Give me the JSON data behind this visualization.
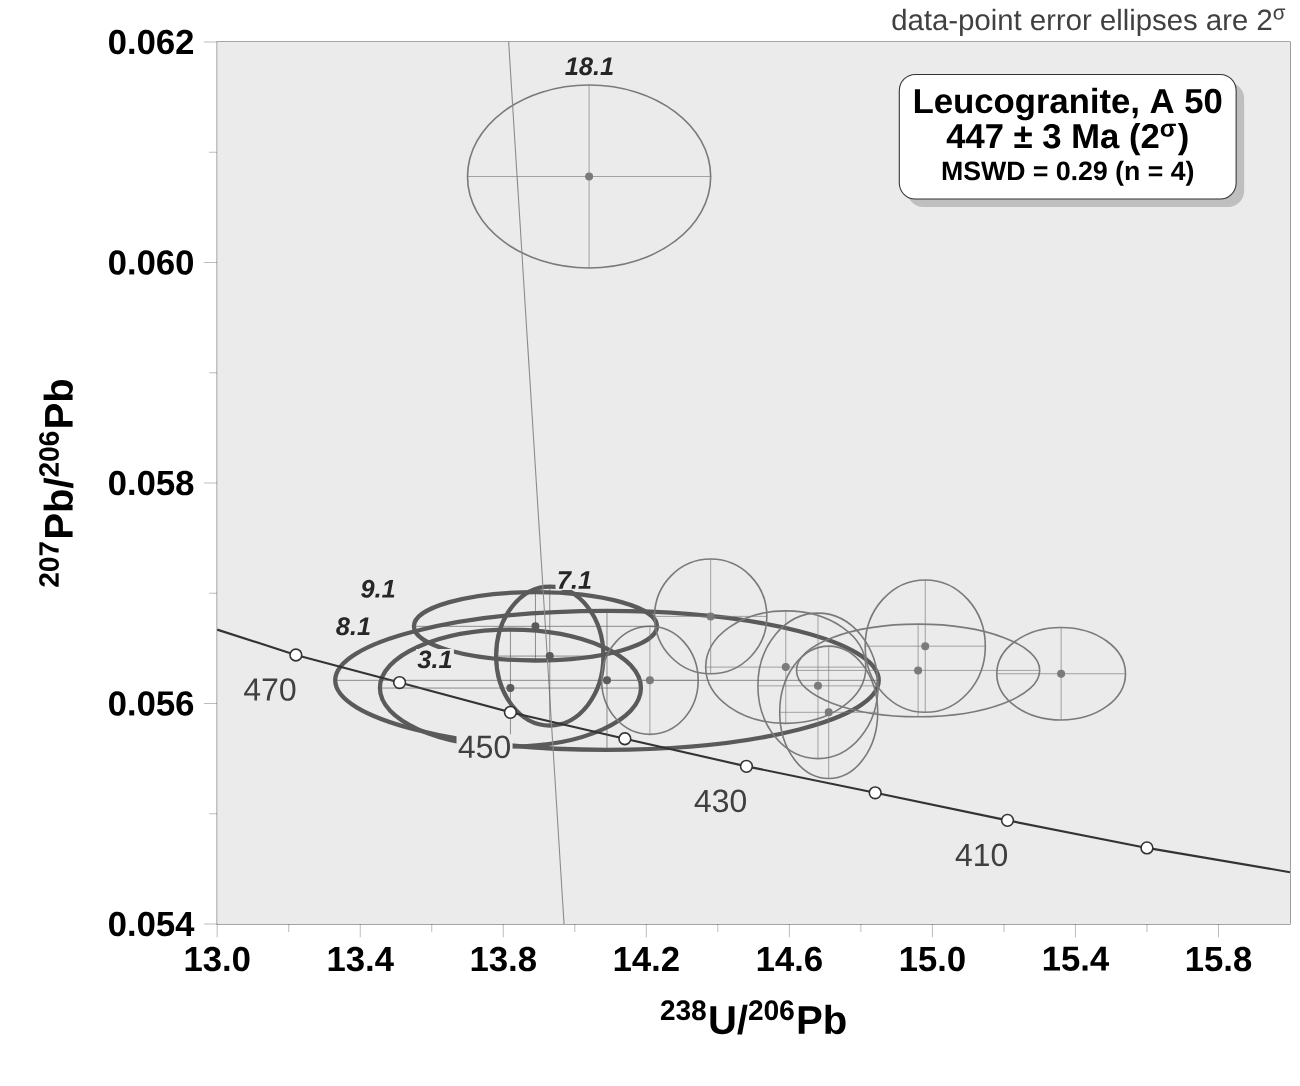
{
  "chart_data": {
    "type": "scatter",
    "xlabel": "$^{238}$U/$^{206}$Pb",
    "ylabel": "$^{207}$Pb/$^{206}$Pb",
    "xlim": [
      13.0,
      16.0
    ],
    "ylim": [
      0.054,
      0.062
    ],
    "xticks": [
      {
        "value": 13.0,
        "label": "13.0"
      },
      {
        "value": 13.4,
        "label": "13.4"
      },
      {
        "value": 13.8,
        "label": "13.8"
      },
      {
        "value": 14.2,
        "label": "14.2"
      },
      {
        "value": 14.6,
        "label": "14.6"
      },
      {
        "value": 15.0,
        "label": "15.0"
      },
      {
        "value": 15.4,
        "label": "15.4"
      },
      {
        "value": 15.8,
        "label": "15.8"
      }
    ],
    "yticks": [
      {
        "value": 0.054,
        "label": "0.054"
      },
      {
        "value": 0.056,
        "label": "0.056"
      },
      {
        "value": 0.058,
        "label": "0.058"
      },
      {
        "value": 0.06,
        "label": "0.060"
      },
      {
        "value": 0.062,
        "label": "0.062"
      }
    ],
    "series": [
      {
        "color": "#5a5a5a",
        "x": [
          13.89,
          14.09,
          13.82,
          13.93
        ],
        "values": [
          0.0567,
          0.05621,
          0.05614,
          0.05643
        ],
        "xerrors": [
          0.34,
          0.76,
          0.365,
          0.15
        ],
        "errors": [
          0.00031,
          0.00063,
          0.00053,
          0.00063
        ]
      },
      {
        "color": "#7a7a7a",
        "x": [
          14.04,
          14.21,
          14.38,
          14.59,
          14.68,
          14.71,
          14.96,
          14.98,
          15.36
        ],
        "values": [
          0.06078,
          0.05621,
          0.05679,
          0.05633,
          0.05616,
          0.05592,
          0.0563,
          0.05652,
          0.05627
        ],
        "xerrors": [
          0.34,
          0.135,
          0.157,
          0.224,
          0.168,
          0.137,
          0.34,
          0.168,
          0.18
        ],
        "errors": [
          0.00083,
          0.00049,
          0.00052,
          0.00051,
          0.00066,
          0.0006,
          0.00042,
          0.0006,
          0.00042
        ]
      },
      {
        "type": "line",
        "color": "#333333",
        "x": [
          13.0,
          13.22,
          13.51,
          13.82,
          14.14,
          14.48,
          14.84,
          15.21,
          15.6,
          16.0
        ],
        "values": [
          0.05667,
          0.05644,
          0.05619,
          0.05592,
          0.05568,
          0.05543,
          0.05519,
          0.05494,
          0.05469,
          0.05447
        ]
      },
      {
        "type": "line",
        "color": "#8a8a8a",
        "x": [
          13.815,
          13.97
        ],
        "values": [
          0.062,
          0.054
        ]
      },
      {
        "color": "#333333",
        "x": [
          13.22,
          13.51,
          13.82,
          14.14,
          14.48,
          14.84,
          15.21,
          15.6
        ],
        "values": [
          0.05644,
          0.05619,
          0.05592,
          0.05568,
          0.05543,
          0.05519,
          0.05494,
          0.05469
        ]
      }
    ],
    "annotations": [
      "data-point error ellipses are 2$^{σ}$",
      "Leucogranite, A 50",
      "447 ± 3 Ma (2$^{σ}$)",
      "MSWD = 0.29 (n = 4)",
      "18.1",
      "9.1",
      "7.1",
      "8.1",
      "3.1",
      {
        "text": "470",
        "x": 13.22,
        "y": 0.05644
      },
      {
        "text": "450",
        "x": 13.82,
        "y": 0.05592
      },
      {
        "text": "430",
        "x": 14.48,
        "y": 0.05543
      },
      {
        "text": "410",
        "x": 15.21,
        "y": 0.05494
      }
    ]
  }
}
